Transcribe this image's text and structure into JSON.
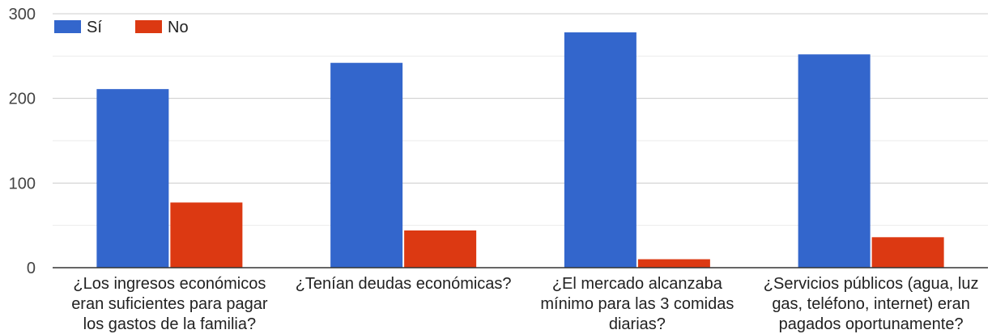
{
  "chart_data": {
    "type": "bar",
    "categories": [
      [
        "¿Los ingresos económicos",
        "eran suficientes para pagar",
        "los gastos de la familia?"
      ],
      [
        "¿Tenían deudas económicas?"
      ],
      [
        "¿El mercado alcanzaba",
        "mínimo para las 3 comidas",
        "diarias?"
      ],
      [
        "¿Servicios públicos (agua, luz",
        "gas, teléfono, internet) eran",
        "pagados oportunamente?"
      ]
    ],
    "series": [
      {
        "name": "Sí",
        "color": "#3366cc",
        "values": [
          211,
          242,
          278,
          252
        ]
      },
      {
        "name": "No",
        "color": "#dc3912",
        "values": [
          77,
          44,
          10,
          36
        ]
      }
    ],
    "ylim": [
      0,
      300
    ],
    "yticks": [
      0,
      100,
      200,
      300
    ],
    "grid": true,
    "legend": "top-left"
  }
}
